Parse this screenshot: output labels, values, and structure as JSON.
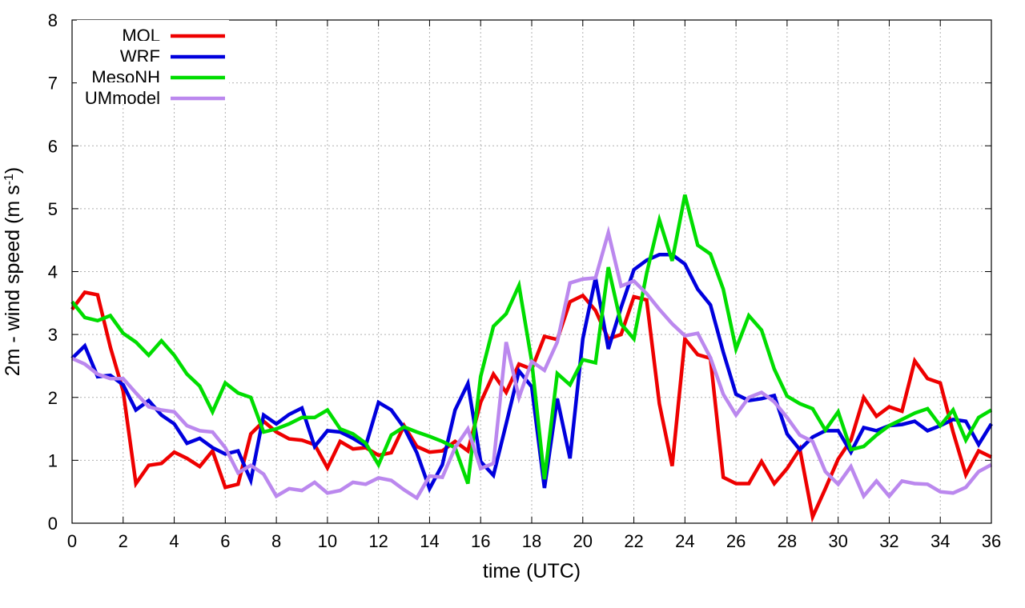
{
  "chart_data": {
    "type": "line",
    "xlabel": "time (UTC)",
    "ylabel_main": "2m - wind speed  (m s",
    "ylabel_sup": "-1",
    "ylabel_close": ")",
    "xlim": [
      0,
      36
    ],
    "ylim": [
      0,
      8
    ],
    "xticks": [
      "0",
      "2",
      "4",
      "6",
      "8",
      "10",
      "12",
      "14",
      "16",
      "18",
      "20",
      "22",
      "24",
      "26",
      "28",
      "30",
      "32",
      "34",
      "36"
    ],
    "yticks": [
      "0",
      "1",
      "2",
      "3",
      "4",
      "5",
      "6",
      "7",
      "8"
    ],
    "grid": true,
    "legend_position": "top-left",
    "x": [
      0,
      0.5,
      1,
      1.5,
      2,
      2.5,
      3,
      3.5,
      4,
      4.5,
      5,
      5.5,
      6,
      6.5,
      7,
      7.5,
      8,
      8.5,
      9,
      9.5,
      10,
      10.5,
      11,
      11.5,
      12,
      12.5,
      13,
      13.5,
      14,
      14.5,
      15,
      15.5,
      16,
      16.5,
      17,
      17.5,
      18,
      18.5,
      19,
      19.5,
      20,
      20.5,
      21,
      21.5,
      22,
      22.5,
      23,
      23.5,
      24,
      24.5,
      25,
      25.5,
      26,
      26.5,
      27,
      27.5,
      28,
      28.5,
      29,
      29.5,
      30,
      30.5,
      31,
      31.5,
      32,
      32.5,
      33,
      33.5,
      34,
      34.5,
      35,
      35.5,
      36
    ],
    "series": [
      {
        "name": "MOL",
        "color": "#ee0000",
        "values": [
          3.4,
          3.67,
          3.63,
          2.8,
          2.1,
          0.63,
          0.92,
          0.95,
          1.13,
          1.03,
          0.9,
          1.15,
          0.57,
          0.62,
          1.42,
          1.62,
          1.45,
          1.34,
          1.32,
          1.25,
          0.88,
          1.3,
          1.18,
          1.2,
          1.08,
          1.12,
          1.55,
          1.22,
          1.13,
          1.15,
          1.3,
          1.15,
          1.92,
          2.37,
          2.08,
          2.53,
          2.45,
          2.97,
          2.92,
          3.52,
          3.62,
          3.38,
          2.93,
          3.0,
          3.6,
          3.55,
          1.9,
          0.91,
          2.93,
          2.68,
          2.62,
          0.73,
          0.63,
          0.63,
          0.98,
          0.63,
          0.87,
          1.18,
          0.1,
          0.55,
          1.02,
          1.32,
          2.0,
          1.7,
          1.85,
          1.78,
          2.58,
          2.3,
          2.23,
          1.45,
          0.77,
          1.15,
          1.05
        ]
      },
      {
        "name": "WRF",
        "color": "#0000dd",
        "values": [
          2.62,
          2.82,
          2.33,
          2.35,
          2.2,
          1.8,
          1.95,
          1.72,
          1.58,
          1.27,
          1.35,
          1.2,
          1.1,
          1.15,
          0.68,
          1.72,
          1.58,
          1.73,
          1.83,
          1.22,
          1.47,
          1.45,
          1.35,
          1.23,
          1.92,
          1.8,
          1.52,
          1.12,
          0.55,
          0.93,
          1.8,
          2.22,
          0.98,
          0.76,
          1.58,
          2.42,
          2.17,
          0.56,
          1.98,
          1.03,
          2.93,
          3.9,
          2.77,
          3.43,
          4.03,
          4.18,
          4.27,
          4.27,
          4.12,
          3.72,
          3.47,
          2.72,
          2.05,
          1.95,
          1.98,
          2.03,
          1.42,
          1.17,
          1.37,
          1.47,
          1.47,
          1.13,
          1.52,
          1.47,
          1.55,
          1.57,
          1.62,
          1.47,
          1.55,
          1.65,
          1.62,
          1.25,
          1.58
        ]
      },
      {
        "name": "MesoNH",
        "color": "#00dd00",
        "values": [
          3.52,
          3.27,
          3.22,
          3.3,
          3.02,
          2.88,
          2.67,
          2.9,
          2.67,
          2.37,
          2.18,
          1.77,
          2.23,
          2.07,
          2.0,
          1.45,
          1.5,
          1.58,
          1.68,
          1.68,
          1.8,
          1.5,
          1.42,
          1.27,
          0.93,
          1.4,
          1.53,
          1.45,
          1.38,
          1.3,
          1.2,
          0.63,
          2.33,
          3.13,
          3.33,
          3.78,
          2.57,
          0.7,
          2.38,
          2.2,
          2.6,
          2.55,
          4.07,
          3.17,
          2.93,
          3.97,
          4.82,
          4.17,
          5.22,
          4.42,
          4.28,
          3.72,
          2.77,
          3.3,
          3.07,
          2.45,
          2.02,
          1.9,
          1.82,
          1.48,
          1.77,
          1.17,
          1.22,
          1.4,
          1.55,
          1.65,
          1.75,
          1.82,
          1.55,
          1.8,
          1.32,
          1.68,
          1.8
        ]
      },
      {
        "name": "UMmodel",
        "color": "#bb88ee",
        "values": [
          2.62,
          2.53,
          2.37,
          2.3,
          2.3,
          2.07,
          1.85,
          1.8,
          1.77,
          1.55,
          1.47,
          1.45,
          1.2,
          0.8,
          0.92,
          0.78,
          0.43,
          0.55,
          0.52,
          0.65,
          0.48,
          0.52,
          0.65,
          0.62,
          0.72,
          0.68,
          0.53,
          0.4,
          0.75,
          0.73,
          1.2,
          1.5,
          0.87,
          0.95,
          2.88,
          2.0,
          2.57,
          2.43,
          2.88,
          3.82,
          3.88,
          3.9,
          4.62,
          3.77,
          3.85,
          3.65,
          3.4,
          3.17,
          2.98,
          3.02,
          2.63,
          2.05,
          1.72,
          2.0,
          2.08,
          1.93,
          1.68,
          1.4,
          1.3,
          0.82,
          0.62,
          0.9,
          0.43,
          0.67,
          0.43,
          0.67,
          0.63,
          0.62,
          0.5,
          0.48,
          0.57,
          0.82,
          0.93
        ]
      }
    ]
  }
}
